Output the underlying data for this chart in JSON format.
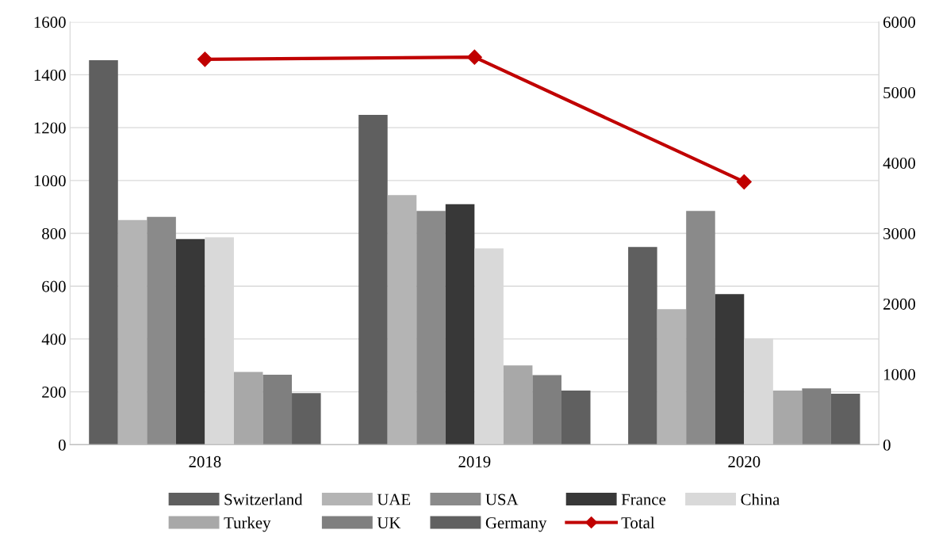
{
  "chart_data": {
    "type": "bar",
    "categories": [
      "2018",
      "2019",
      "2020"
    ],
    "series": [
      {
        "name": "Switzerland",
        "color": "#5f5f5f",
        "values": [
          1455,
          1248,
          748
        ]
      },
      {
        "name": "UAE",
        "color": "#b4b4b4",
        "values": [
          850,
          945,
          513
        ]
      },
      {
        "name": "USA",
        "color": "#8a8a8a",
        "values": [
          862,
          885,
          885
        ]
      },
      {
        "name": "France",
        "color": "#383838",
        "values": [
          778,
          910,
          570
        ]
      },
      {
        "name": "China",
        "color": "#d9d9d9",
        "values": [
          785,
          743,
          402
        ]
      },
      {
        "name": "Turkey",
        "color": "#a8a8a8",
        "values": [
          275,
          300,
          205
        ]
      },
      {
        "name": "UK",
        "color": "#7f7f7f",
        "values": [
          265,
          263,
          213
        ]
      },
      {
        "name": "Germany",
        "color": "#606060",
        "values": [
          195,
          205,
          193
        ]
      },
      {
        "name": "Total",
        "color": "#c00000",
        "type": "line",
        "axis": "y2",
        "marker": "diamond",
        "values": [
          5470,
          5500,
          3730
        ]
      }
    ],
    "ylim": [
      0,
      1600
    ],
    "yticks": [
      0,
      200,
      400,
      600,
      800,
      1000,
      1200,
      1400,
      1600
    ],
    "y2lim": [
      0,
      6000
    ],
    "y2ticks": [
      0,
      1000,
      2000,
      3000,
      4000,
      5000,
      6000
    ],
    "grid": "y",
    "legend": "bottom"
  }
}
